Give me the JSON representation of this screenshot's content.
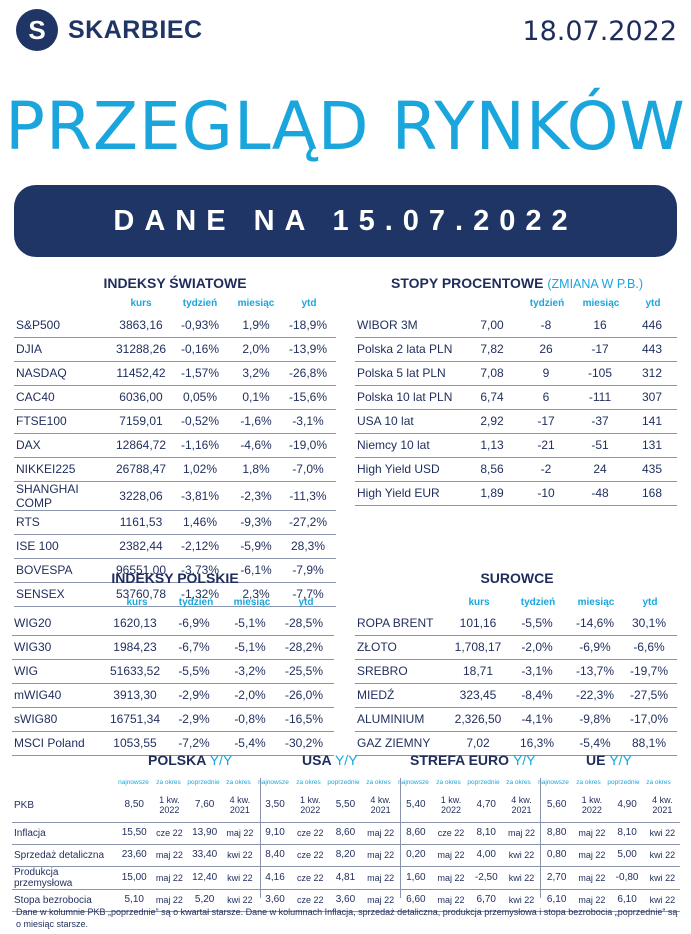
{
  "header": {
    "logo_letter": "S",
    "brand": "SKARBIEC",
    "date": "18.07.2022",
    "title": "PRZEGLĄD RYNKÓW",
    "banner": "DANE NA 15.07.2022"
  },
  "world_indices": {
    "title": "INDEKSY ŚWIATOWE",
    "cols": [
      "kurs",
      "tydzień",
      "miesiąc",
      "ytd"
    ],
    "rows": [
      [
        "S&P500",
        "3863,16",
        "-0,93%",
        "1,9%",
        "-18,9%"
      ],
      [
        "DJIA",
        "31288,26",
        "-0,16%",
        "2,0%",
        "-13,9%"
      ],
      [
        "NASDAQ",
        "11452,42",
        "-1,57%",
        "3,2%",
        "-26,8%"
      ],
      [
        "CAC40",
        "6036,00",
        "0,05%",
        "0,1%",
        "-15,6%"
      ],
      [
        "FTSE100",
        "7159,01",
        "-0,52%",
        "-1,6%",
        "-3,1%"
      ],
      [
        "DAX",
        "12864,72",
        "-1,16%",
        "-4,6%",
        "-19,0%"
      ],
      [
        "NIKKEI225",
        "26788,47",
        "1,02%",
        "1,8%",
        "-7,0%"
      ],
      [
        "SHANGHAI COMP",
        "3228,06",
        "-3,81%",
        "-2,3%",
        "-11,3%"
      ],
      [
        "RTS",
        "1161,53",
        "1,46%",
        "-9,3%",
        "-27,2%"
      ],
      [
        "ISE 100",
        "2382,44",
        "-2,12%",
        "-5,9%",
        "28,3%"
      ],
      [
        "BOVESPA",
        "96551,00",
        "-3,73%",
        "-6,1%",
        "-7,9%"
      ],
      [
        "SENSEX",
        "53760,78",
        "-1,32%",
        "2,3%",
        "-7,7%"
      ]
    ]
  },
  "rates": {
    "title": "STOPY PROCENTOWE",
    "subtitle": "(ZMIANA W P.B.)",
    "cols": [
      "tydzień",
      "miesiąc",
      "ytd"
    ],
    "rows": [
      [
        "WIBOR 3M",
        "7,00",
        "-8",
        "16",
        "446"
      ],
      [
        "Polska 2 lata PLN",
        "7,82",
        "26",
        "-17",
        "443"
      ],
      [
        "Polska 5 lat PLN",
        "7,08",
        "9",
        "-105",
        "312"
      ],
      [
        "Polska 10 lat PLN",
        "6,74",
        "6",
        "-111",
        "307"
      ],
      [
        "USA 10 lat",
        "2,92",
        "-17",
        "-37",
        "141"
      ],
      [
        "Niemcy 10 lat",
        "1,13",
        "-21",
        "-51",
        "131"
      ],
      [
        "High Yield USD",
        "8,56",
        "-2",
        "24",
        "435"
      ],
      [
        "High Yield EUR",
        "1,89",
        "-10",
        "-48",
        "168"
      ]
    ]
  },
  "polish_indices": {
    "title": "INDEKSY POLSKIE",
    "cols": [
      "kurs",
      "tydzień",
      "miesiąc",
      "ytd"
    ],
    "rows": [
      [
        "WIG20",
        "1620,13",
        "-6,9%",
        "-5,1%",
        "-28,5%"
      ],
      [
        "WIG30",
        "1984,23",
        "-6,7%",
        "-5,1%",
        "-28,2%"
      ],
      [
        "WIG",
        "51633,52",
        "-5,5%",
        "-3,2%",
        "-25,5%"
      ],
      [
        "mWIG40",
        "3913,30",
        "-2,9%",
        "-2,0%",
        "-26,0%"
      ],
      [
        "sWIG80",
        "16751,34",
        "-2,9%",
        "-0,8%",
        "-16,5%"
      ],
      [
        "MSCI Poland",
        "1053,55",
        "-7,2%",
        "-5,4%",
        "-30,2%"
      ]
    ]
  },
  "commodities": {
    "title": "SUROWCE",
    "cols": [
      "kurs",
      "tydzień",
      "miesiąc",
      "ytd"
    ],
    "rows": [
      [
        "ROPA BRENT",
        "101,16",
        "-5,5%",
        "-14,6%",
        "30,1%"
      ],
      [
        "ZŁOTO",
        "1,708,17",
        "-2,0%",
        "-6,9%",
        "-6,6%"
      ],
      [
        "SREBRO",
        "18,71",
        "-3,1%",
        "-13,7%",
        "-19,7%"
      ],
      [
        "MIEDŹ",
        "323,45",
        "-8,4%",
        "-22,3%",
        "-27,5%"
      ],
      [
        "ALUMINIUM",
        "2,326,50",
        "-4,1%",
        "-9,8%",
        "-17,0%"
      ],
      [
        "GAZ ZIEMNY",
        "7,02",
        "16,3%",
        "-5,4%",
        "88,1%"
      ]
    ]
  },
  "macro": {
    "regions": [
      {
        "name": "POLSKA",
        "yy": "Y/Y"
      },
      {
        "name": "USA",
        "yy": "Y/Y"
      },
      {
        "name": "STREFA EURO",
        "yy": "Y/Y"
      },
      {
        "name": "UE",
        "yy": "Y/Y"
      }
    ],
    "subcols": [
      "najnowsze",
      "za okres",
      "poprzednie",
      "za okres"
    ],
    "rows": [
      {
        "name": "PKB",
        "cells": [
          "8,50",
          "1 kw. 2022",
          "7,60",
          "4 kw. 2021",
          "3,50",
          "1 kw. 2022",
          "5,50",
          "4 kw. 2021",
          "5,40",
          "1 kw. 2022",
          "4,70",
          "4 kw. 2021",
          "5,60",
          "1 kw. 2022",
          "4,90",
          "4 kw. 2021"
        ]
      },
      {
        "name": "Inflacja",
        "cells": [
          "15,50",
          "cze 22",
          "13,90",
          "maj 22",
          "9,10",
          "cze 22",
          "8,60",
          "maj 22",
          "8,60",
          "cze 22",
          "8,10",
          "maj 22",
          "8,80",
          "maj 22",
          "8,10",
          "kwi 22"
        ]
      },
      {
        "name": "Sprzedaż detaliczna",
        "cells": [
          "23,60",
          "maj 22",
          "33,40",
          "kwi 22",
          "8,40",
          "cze 22",
          "8,20",
          "maj 22",
          "0,20",
          "maj 22",
          "4,00",
          "kwi 22",
          "0,80",
          "maj 22",
          "5,00",
          "kwi 22"
        ]
      },
      {
        "name": "Produkcja przemysłowa",
        "cells": [
          "15,00",
          "maj 22",
          "12,40",
          "kwi 22",
          "4,16",
          "cze 22",
          "4,81",
          "maj 22",
          "1,60",
          "maj 22",
          "-2,50",
          "kwi 22",
          "2,70",
          "maj 22",
          "-0,80",
          "kwi 22"
        ]
      },
      {
        "name": "Stopa bezrobocia",
        "cells": [
          "5,10",
          "maj 22",
          "5,20",
          "kwi 22",
          "3,60",
          "cze 22",
          "3,60",
          "maj 22",
          "6,60",
          "maj 22",
          "6,70",
          "kwi 22",
          "6,10",
          "maj 22",
          "6,10",
          "kwi 22"
        ]
      }
    ]
  },
  "footnote": "Dane w kolumnie PKB „poprzednie” są o kwartał starsze.  Dane w kolumnach Inflacja, sprzedaż detaliczna, produkcja przemysłowa i stopa bezrobocia „poprzednie” są o miesiąc starsze."
}
